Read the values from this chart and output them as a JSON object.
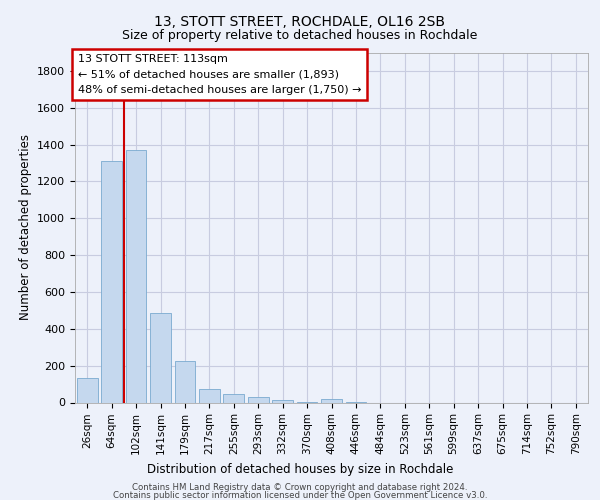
{
  "title1": "13, STOTT STREET, ROCHDALE, OL16 2SB",
  "title2": "Size of property relative to detached houses in Rochdale",
  "xlabel": "Distribution of detached houses by size in Rochdale",
  "ylabel": "Number of detached properties",
  "bar_color": "#c5d8ee",
  "bar_edge_color": "#7aaad0",
  "categories": [
    "26sqm",
    "64sqm",
    "102sqm",
    "141sqm",
    "179sqm",
    "217sqm",
    "255sqm",
    "293sqm",
    "332sqm",
    "370sqm",
    "408sqm",
    "446sqm",
    "484sqm",
    "523sqm",
    "561sqm",
    "599sqm",
    "637sqm",
    "675sqm",
    "714sqm",
    "752sqm",
    "790sqm"
  ],
  "values": [
    135,
    1310,
    1370,
    487,
    225,
    75,
    45,
    28,
    15,
    3,
    18,
    3,
    0,
    0,
    0,
    0,
    0,
    0,
    0,
    0,
    0
  ],
  "vline_color": "#cc0000",
  "vline_x": 1.5,
  "annotation_title": "13 STOTT STREET: 113sqm",
  "annotation_line1": "← 51% of detached houses are smaller (1,893)",
  "annotation_line2": "48% of semi-detached houses are larger (1,750) →",
  "annotation_box_color": "#ffffff",
  "annotation_box_edge": "#cc0000",
  "ylim": [
    0,
    1900
  ],
  "yticks": [
    0,
    200,
    400,
    600,
    800,
    1000,
    1200,
    1400,
    1600,
    1800
  ],
  "footer1": "Contains HM Land Registry data © Crown copyright and database right 2024.",
  "footer2": "Contains public sector information licensed under the Open Government Licence v3.0.",
  "background_color": "#edf1fa",
  "grid_color": "#c8cce0"
}
